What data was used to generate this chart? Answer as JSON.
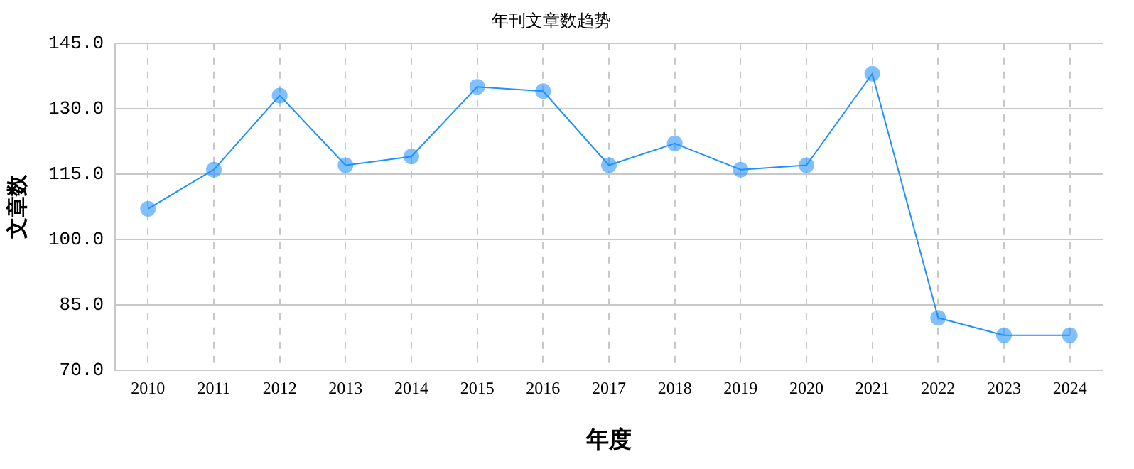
{
  "chart_data": {
    "type": "line",
    "title": "年刊文章数趋势",
    "xlabel": "年度",
    "ylabel": "文章数",
    "categories": [
      "2010",
      "2011",
      "2012",
      "2013",
      "2014",
      "2015",
      "2016",
      "2017",
      "2018",
      "2019",
      "2020",
      "2021",
      "2022",
      "2023",
      "2024"
    ],
    "series": [
      {
        "color": "#1e90ff",
        "values": [
          107,
          116,
          133,
          117,
          119,
          135,
          134,
          117,
          122,
          116,
          117,
          138,
          82,
          78,
          78
        ]
      }
    ],
    "ylim": [
      70,
      145
    ],
    "yticks": [
      {
        "value": 70,
        "label": "70.0"
      },
      {
        "value": 85,
        "label": "85.0"
      },
      {
        "value": 100,
        "label": "100.0"
      },
      {
        "value": 115,
        "label": "115.0"
      },
      {
        "value": 130,
        "label": "130.0"
      },
      {
        "value": 145,
        "label": "145.0"
      }
    ],
    "grid": true,
    "legend": false,
    "marker": "circle",
    "line_style": "solid"
  }
}
